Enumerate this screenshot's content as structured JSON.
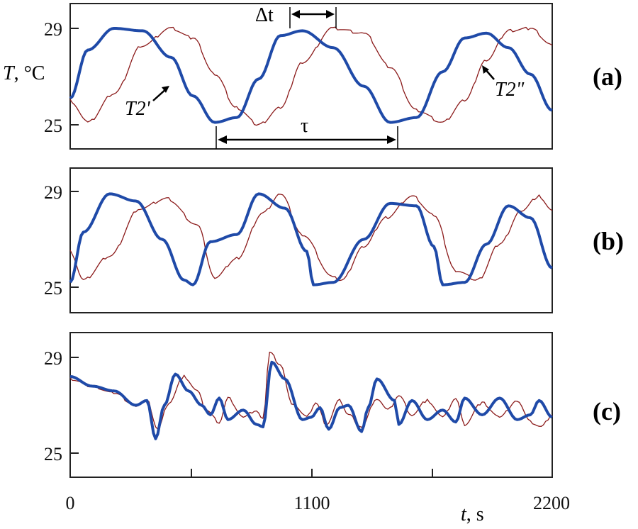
{
  "colors": {
    "T2_prime": "#1f4aa8",
    "T2_double_prime": "#8b1a1a"
  },
  "yaxis": {
    "label": "T, °C",
    "label_italic": "T",
    "label_rest": ", °C",
    "ticks": [
      "29",
      "25"
    ]
  },
  "xaxis": {
    "label_italic": "t",
    "label_rest": ", s",
    "ticks": [
      "0",
      "1100",
      "2200"
    ]
  },
  "annotations": {
    "delta_t": "Δt",
    "tau": "τ",
    "T2_prime": "T2'",
    "T2_double_prime": "T2\""
  },
  "chart_data": [
    {
      "type": "line",
      "panel": "(a)",
      "xlim": [
        0,
        2200
      ],
      "ylim": [
        24,
        30
      ],
      "yticks": [
        25,
        29
      ],
      "series": [
        {
          "name": "T2'",
          "x": [
            0,
            80,
            200,
            330,
            460,
            560,
            660,
            760,
            860,
            960,
            1060,
            1200,
            1340,
            1460,
            1580,
            1700,
            1800,
            1900,
            2000,
            2100,
            2200
          ],
          "values": [
            26.1,
            28.1,
            29.0,
            28.9,
            27.8,
            26.2,
            25.1,
            25.3,
            26.9,
            28.7,
            28.9,
            28.2,
            26.6,
            25.1,
            25.3,
            27.2,
            28.6,
            28.8,
            28.2,
            27.1,
            25.6
          ]
        },
        {
          "name": "T2\"",
          "x": [
            0,
            80,
            200,
            330,
            460,
            560,
            660,
            760,
            860,
            960,
            1060,
            1200,
            1340,
            1460,
            1580,
            1700,
            1800,
            1900,
            2000,
            2100,
            2200
          ],
          "values": [
            26.0,
            25.1,
            26.3,
            28.3,
            29.0,
            28.6,
            27.1,
            25.7,
            25.0,
            25.7,
            27.6,
            29.0,
            28.8,
            27.4,
            25.6,
            25.1,
            26.0,
            27.7,
            28.9,
            29.0,
            28.3
          ]
        }
      ]
    },
    {
      "type": "line",
      "panel": "(b)",
      "xlim": [
        0,
        2200
      ],
      "ylim": [
        24,
        30
      ],
      "yticks": [
        25,
        29
      ],
      "series": [
        {
          "name": "T2'",
          "x": [
            0,
            60,
            180,
            300,
            420,
            520,
            560,
            640,
            760,
            860,
            980,
            1080,
            1110,
            1200,
            1340,
            1460,
            1580,
            1660,
            1700,
            1800,
            1900,
            2000,
            2100,
            2200
          ],
          "values": [
            25.2,
            27.3,
            28.9,
            28.6,
            27.0,
            25.3,
            25.1,
            26.9,
            27.2,
            28.9,
            28.3,
            26.5,
            25.1,
            25.2,
            27.0,
            28.5,
            28.4,
            26.7,
            25.1,
            25.2,
            26.8,
            28.4,
            27.9,
            25.8
          ]
        },
        {
          "name": "T2\"",
          "x": [
            0,
            60,
            180,
            320,
            440,
            580,
            660,
            760,
            880,
            960,
            1060,
            1200,
            1240,
            1340,
            1440,
            1560,
            1660,
            1760,
            1860,
            1960,
            2060,
            2140,
            2200
          ],
          "values": [
            26.5,
            25.3,
            26.3,
            28.3,
            28.7,
            27.6,
            25.4,
            26.2,
            28.1,
            28.9,
            27.2,
            25.4,
            25.3,
            26.7,
            27.9,
            28.8,
            28.0,
            25.7,
            25.3,
            26.8,
            28.2,
            28.8,
            28.2
          ]
        }
      ]
    },
    {
      "type": "line",
      "panel": "(c)",
      "xlim": [
        0,
        2200
      ],
      "ylim": [
        24,
        30
      ],
      "yticks": [
        25,
        29
      ],
      "series": [
        {
          "name": "T2'",
          "x": [
            0,
            100,
            200,
            300,
            350,
            390,
            430,
            480,
            540,
            600,
            640,
            680,
            720,
            790,
            850,
            880,
            920,
            980,
            1060,
            1100,
            1140,
            1180,
            1230,
            1270,
            1330,
            1360,
            1400,
            1480,
            1500,
            1560,
            1630,
            1700,
            1760,
            1800,
            1880,
            1960,
            2040,
            2100,
            2140,
            2200
          ],
          "values": [
            28.2,
            27.8,
            27.6,
            27.0,
            27.2,
            25.6,
            27.0,
            28.3,
            27.6,
            27.0,
            26.6,
            27.3,
            26.4,
            26.8,
            26.2,
            26.1,
            28.8,
            28.1,
            26.4,
            26.5,
            26.9,
            26.0,
            26.9,
            27.0,
            25.9,
            26.9,
            28.1,
            27.2,
            26.2,
            27.2,
            26.4,
            26.8,
            26.3,
            27.3,
            26.6,
            27.3,
            26.4,
            26.6,
            27.2,
            26.5
          ]
        },
        {
          "name": "T2\"",
          "x": [
            0,
            100,
            200,
            300,
            350,
            400,
            450,
            520,
            580,
            620,
            680,
            720,
            790,
            850,
            880,
            910,
            960,
            1010,
            1080,
            1120,
            1170,
            1230,
            1270,
            1330,
            1400,
            1450,
            1500,
            1560,
            1630,
            1700,
            1760,
            1800,
            1880,
            1960,
            2040,
            2100,
            2150,
            2200
          ],
          "values": [
            28.1,
            27.8,
            27.5,
            27.0,
            27.2,
            26.0,
            27.1,
            28.2,
            27.6,
            26.8,
            26.3,
            27.3,
            26.5,
            26.8,
            26.4,
            29.2,
            28.7,
            27.1,
            26.5,
            27.1,
            26.2,
            27.2,
            26.6,
            26.1,
            27.3,
            26.8,
            27.4,
            26.6,
            27.2,
            26.5,
            27.3,
            26.2,
            27.1,
            26.5,
            27.2,
            26.3,
            26.1,
            26.6
          ]
        }
      ]
    }
  ]
}
